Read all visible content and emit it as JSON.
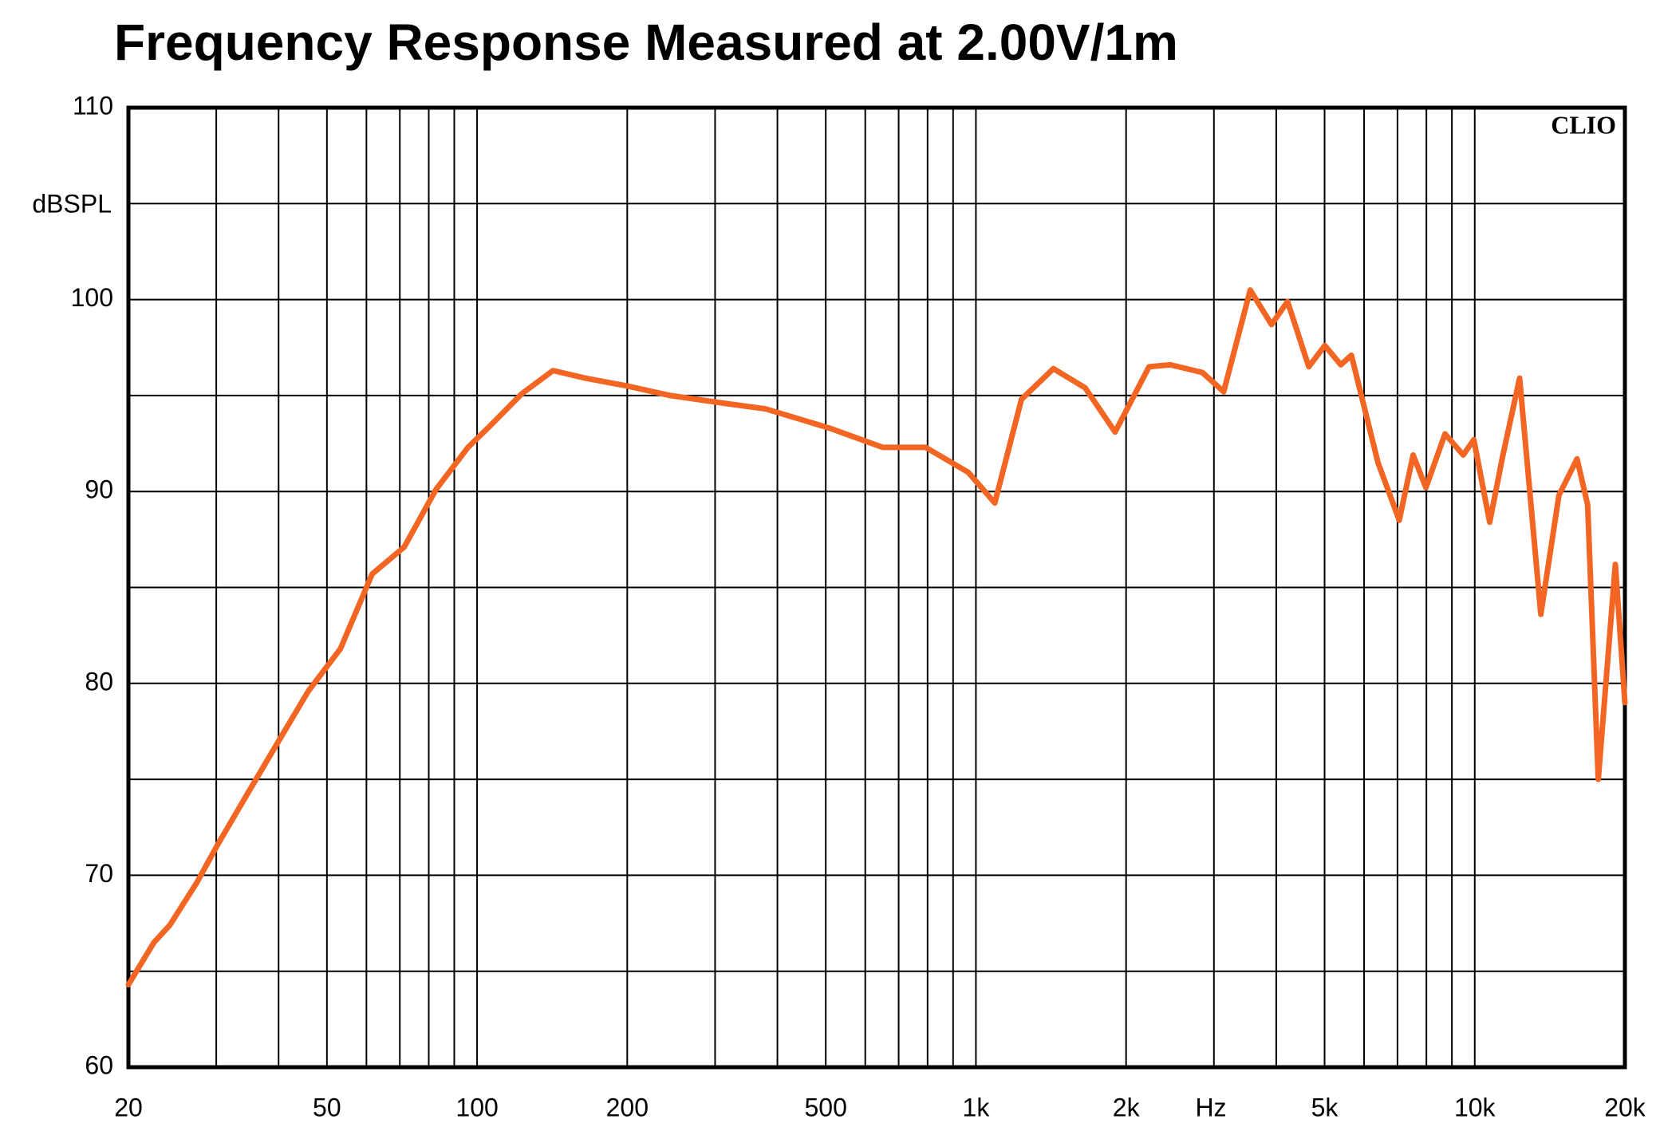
{
  "chart_data": {
    "type": "line",
    "title": "Frequency Response Measured at 2.00V/1m",
    "ylabel": "dBSPL",
    "xlabel": "Hz",
    "logo": "CLIO",
    "xscale": "log",
    "xlim": [
      20,
      20000
    ],
    "ylim": [
      60,
      110
    ],
    "xticks": [
      20,
      50,
      100,
      200,
      500,
      {
        "value": 1000,
        "label": "1k"
      },
      {
        "value": 2000,
        "label": "2k"
      },
      {
        "value": 5000,
        "label": "5k"
      },
      {
        "value": 10000,
        "label": "10k"
      },
      {
        "value": 20000,
        "label": "20k"
      }
    ],
    "xgrid_minor": [
      30,
      40,
      60,
      70,
      80,
      90,
      300,
      400,
      600,
      700,
      800,
      900,
      3000,
      4000,
      6000,
      7000,
      8000,
      9000
    ],
    "yticks": [
      60,
      70,
      80,
      90,
      100,
      110
    ],
    "ygrid_minor": [
      65,
      75,
      85,
      95,
      105
    ],
    "grid": true,
    "x": [
      20,
      22.5,
      24.2,
      27.4,
      30.2,
      34.2,
      39.6,
      45.9,
      53.2,
      61.6,
      71.4,
      82.7,
      95.9,
      106,
      123,
      142,
      165,
      200,
      244,
      312,
      379,
      509,
      651,
      793,
      965,
      1091,
      1234,
      1430,
      1656,
      1901,
      2224,
      2454,
      2844,
      3138,
      3548,
      3914,
      4214,
      4649,
      5005,
      5389,
      5659,
      6398,
      7056,
      7524,
      7981,
      8718,
      9480,
      9956,
      10716,
      11368,
      12300,
      13568,
      14752,
      16034,
      16840,
      17688,
      19136,
      20000
    ],
    "series": [
      {
        "name": "Response",
        "color": "#f26522",
        "values": [
          64.3,
          66.5,
          67.4,
          69.6,
          71.6,
          74.0,
          76.8,
          79.6,
          81.8,
          85.7,
          87.1,
          90.1,
          92.3,
          93.4,
          95.1,
          96.3,
          95.9,
          95.5,
          95.0,
          94.6,
          94.3,
          93.3,
          92.3,
          92.3,
          91.0,
          89.4,
          94.8,
          96.4,
          95.4,
          93.1,
          96.5,
          96.6,
          96.2,
          95.2,
          100.5,
          98.7,
          99.9,
          96.5,
          97.6,
          96.6,
          97.1,
          91.5,
          88.5,
          91.9,
          90.2,
          93.0,
          91.9,
          92.7,
          88.4,
          91.8,
          95.9,
          83.6,
          89.8,
          91.7,
          89.3,
          75.0,
          86.2,
          79.0
        ]
      }
    ]
  }
}
